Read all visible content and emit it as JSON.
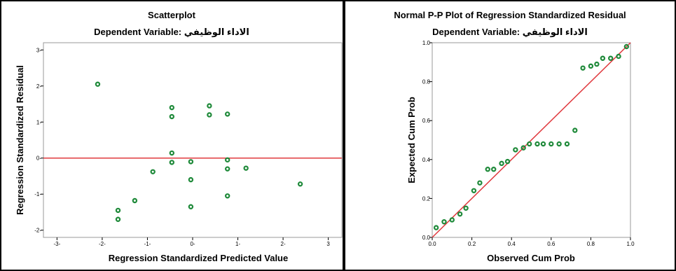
{
  "colors": {
    "point": "#1f8a3a",
    "reference_line": "#e0393e",
    "frame": "#9a9a9a"
  },
  "chart_data": [
    {
      "type": "scatter",
      "title": "Scatterplot",
      "subtitle": "Dependent Variable: الاداء الوظيفي",
      "xlabel": "Regression Standardized Predicted Value",
      "ylabel": "Regression Standardized Residual",
      "xlim": [
        -3.3,
        3.3
      ],
      "ylim": [
        -2.2,
        3.2
      ],
      "xticks": [
        -3,
        -2,
        -1,
        0,
        1,
        2,
        3
      ],
      "yticks": [
        -2,
        -1,
        0,
        1,
        2,
        3
      ],
      "xtick_labels": [
        "-3-",
        "-2-",
        "-1-",
        "0-",
        "1-",
        "2-",
        "3"
      ],
      "ytick_labels": [
        "-2-",
        "-1-",
        "0-",
        "1-",
        "2-",
        "3-"
      ],
      "reference_line": {
        "type": "horizontal",
        "y": 0
      },
      "grid": false,
      "points": [
        {
          "x": -2.1,
          "y": 2.05
        },
        {
          "x": -1.65,
          "y": -1.45
        },
        {
          "x": -1.65,
          "y": -1.7
        },
        {
          "x": -1.28,
          "y": -1.18
        },
        {
          "x": -0.88,
          "y": -0.38
        },
        {
          "x": -0.46,
          "y": 1.4
        },
        {
          "x": -0.46,
          "y": 1.15
        },
        {
          "x": -0.46,
          "y": 0.14
        },
        {
          "x": -0.46,
          "y": -0.12
        },
        {
          "x": -0.04,
          "y": -0.1
        },
        {
          "x": -0.04,
          "y": -0.6
        },
        {
          "x": -0.04,
          "y": -1.35
        },
        {
          "x": 0.37,
          "y": 1.45
        },
        {
          "x": 0.37,
          "y": 1.2
        },
        {
          "x": 0.77,
          "y": 1.22
        },
        {
          "x": 0.77,
          "y": -0.05
        },
        {
          "x": 0.77,
          "y": -0.3
        },
        {
          "x": 0.77,
          "y": -1.05
        },
        {
          "x": 1.18,
          "y": -0.28
        },
        {
          "x": 2.38,
          "y": -0.72
        }
      ]
    },
    {
      "type": "scatter",
      "title": "Normal P-P Plot of Regression Standardized Residual",
      "subtitle": "Dependent Variable: الاداء الوظيفي",
      "xlabel": "Observed Cum Prob",
      "ylabel": "Expected Cum Prob",
      "xlim": [
        0,
        1
      ],
      "ylim": [
        0,
        1
      ],
      "xticks": [
        0,
        0.2,
        0.4,
        0.6,
        0.8,
        1.0
      ],
      "yticks": [
        0,
        0.2,
        0.4,
        0.6,
        0.8,
        1.0
      ],
      "xtick_labels": [
        "0.0",
        "0.2",
        "0.4",
        "0.6",
        "0.8",
        "1.0"
      ],
      "ytick_labels": [
        "0.0",
        "0.2",
        "0.4",
        "0.6",
        "0.8",
        "1.0"
      ],
      "reference_line": {
        "type": "diagonal",
        "from": [
          0,
          0
        ],
        "to": [
          1,
          1
        ]
      },
      "grid": false,
      "points": [
        {
          "x": 0.02,
          "y": 0.05
        },
        {
          "x": 0.06,
          "y": 0.08
        },
        {
          "x": 0.1,
          "y": 0.09
        },
        {
          "x": 0.14,
          "y": 0.12
        },
        {
          "x": 0.17,
          "y": 0.15
        },
        {
          "x": 0.21,
          "y": 0.24
        },
        {
          "x": 0.24,
          "y": 0.28
        },
        {
          "x": 0.28,
          "y": 0.35
        },
        {
          "x": 0.31,
          "y": 0.35
        },
        {
          "x": 0.35,
          "y": 0.38
        },
        {
          "x": 0.38,
          "y": 0.39
        },
        {
          "x": 0.42,
          "y": 0.45
        },
        {
          "x": 0.46,
          "y": 0.46
        },
        {
          "x": 0.49,
          "y": 0.48
        },
        {
          "x": 0.53,
          "y": 0.48
        },
        {
          "x": 0.56,
          "y": 0.48
        },
        {
          "x": 0.6,
          "y": 0.48
        },
        {
          "x": 0.64,
          "y": 0.48
        },
        {
          "x": 0.68,
          "y": 0.48
        },
        {
          "x": 0.72,
          "y": 0.55
        },
        {
          "x": 0.76,
          "y": 0.87
        },
        {
          "x": 0.8,
          "y": 0.88
        },
        {
          "x": 0.83,
          "y": 0.89
        },
        {
          "x": 0.86,
          "y": 0.92
        },
        {
          "x": 0.9,
          "y": 0.92
        },
        {
          "x": 0.94,
          "y": 0.93
        },
        {
          "x": 0.98,
          "y": 0.98
        }
      ]
    }
  ]
}
